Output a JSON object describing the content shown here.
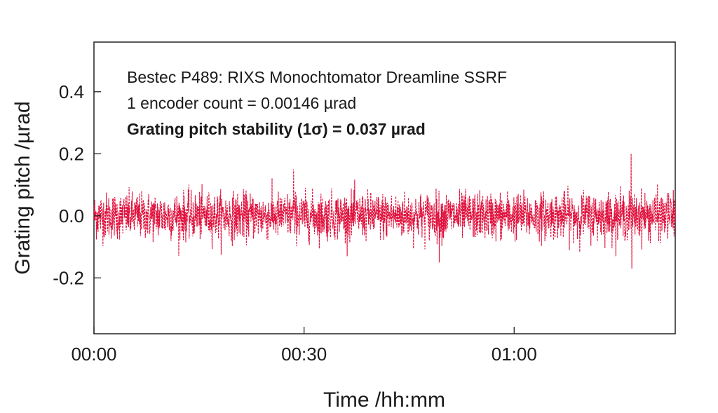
{
  "chart_data": {
    "type": "line",
    "title": "",
    "xlabel": "Time /hh:mm",
    "ylabel": "Grating pitch /µrad",
    "xlim_minutes": [
      0,
      83
    ],
    "ylim": [
      -0.38,
      0.56
    ],
    "x_ticks": [
      {
        "value": 0,
        "label": "00:00"
      },
      {
        "value": 30,
        "label": "00:30"
      },
      {
        "value": 60,
        "label": "01:00"
      }
    ],
    "y_ticks": [
      {
        "value": 0.4,
        "label": "0.4"
      },
      {
        "value": 0.2,
        "label": "0.2"
      },
      {
        "value": 0.0,
        "label": "0.0"
      },
      {
        "value": -0.2,
        "label": "-0.2"
      }
    ],
    "annotations": [
      "Bestec P489: RIXS Monochtomator Dreamline SSRF",
      "1 encoder count = 0.00146 µrad",
      "Grating pitch stability (1σ) = 0.037 µrad"
    ],
    "series": [
      {
        "name": "Grating pitch",
        "color": "#e0103c",
        "style": "dashed",
        "sigma": 0.037,
        "mean": 0.0,
        "n_points": 2400,
        "x_start_minutes": 0,
        "x_end_minutes": 83,
        "notable_points": [
          {
            "x": 76.7,
            "y": 0.2
          },
          {
            "x": 76.8,
            "y": -0.17
          },
          {
            "x": 28.5,
            "y": 0.15
          },
          {
            "x": 49.3,
            "y": -0.15
          }
        ]
      }
    ]
  }
}
